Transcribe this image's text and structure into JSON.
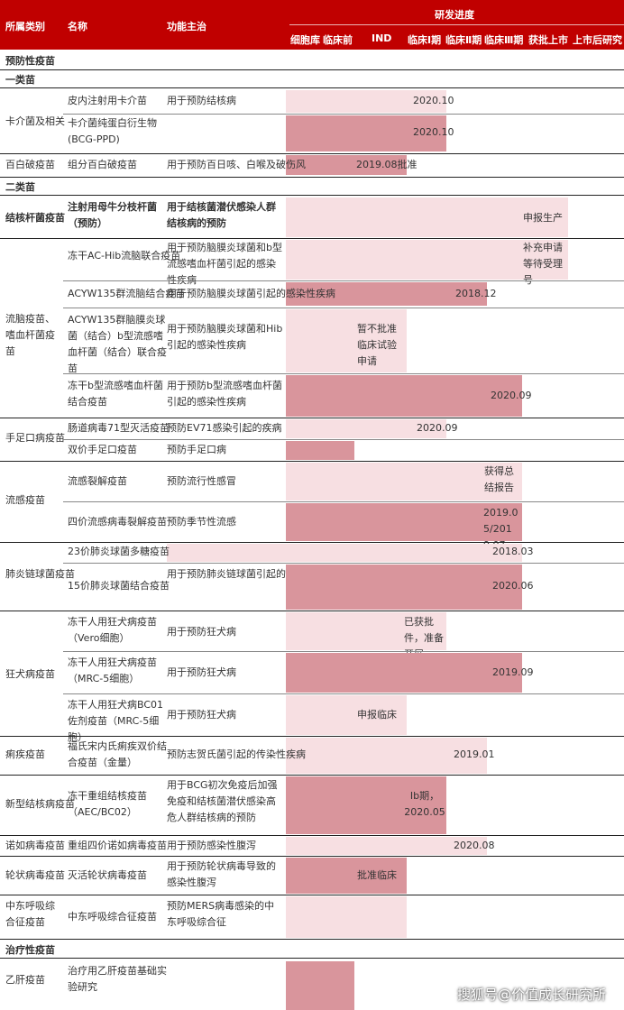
{
  "header": {
    "category": "所属类别",
    "name": "名称",
    "indication": "功能主治",
    "progress": "研发进度",
    "stages": [
      "细胞库",
      "临床前",
      "IND",
      "临床Ⅰ期",
      "临床Ⅱ期",
      "临床Ⅲ期",
      "获批上市",
      "上市后研究"
    ]
  },
  "sections": {
    "preventive": "预防性疫苗",
    "class1": "一类苗",
    "class2": "二类苗",
    "therapeutic": "治疗性疫苗"
  },
  "rows": [
    {
      "cat": "",
      "name": "皮内注射用卡介苗",
      "ind": "用于预防结核病",
      "val": "2020.10"
    },
    {
      "cat": "卡介菌及相关",
      "name": "卡介菌纯蛋白衍生物 (BCG-PPD)",
      "ind": "",
      "val": "2020.10"
    },
    {
      "cat": "百白破疫苗",
      "name": "组分百白破疫苗",
      "ind": "用于预防百日咳、白喉及破伤风",
      "val": "2019.08批准"
    },
    {
      "cat": "结核杆菌疫苗",
      "name": "注射用母牛分枝杆菌（预防）",
      "ind": "用于结核菌潜伏感染人群结核病的预防",
      "val": "申报生产"
    },
    {
      "cat": "",
      "name": "冻干AC-Hib流脑联合疫苗",
      "ind": "用于预防脑膜炎球菌和b型流感嗜血杆菌引起的感染性疾病",
      "val": "补充申请等待受理号"
    },
    {
      "cat": "流脑疫苗、嗜血杆菌疫苗",
      "name": "ACYW135群流脑结合疫苗",
      "ind": "用于预防脑膜炎球菌引起的感染性疾病",
      "val": "2018.12"
    },
    {
      "cat": "",
      "name": "ACYW135群脑膜炎球菌（结合）b型流感嗜血杆菌（结合）联合疫苗",
      "ind": "用于预防脑膜炎球菌和Hib引起的感染性疾病",
      "val": "暂不批准临床试验申请"
    },
    {
      "cat": "",
      "name": "冻干b型流感嗜血杆菌结合疫苗",
      "ind": "用于预防b型流感嗜血杆菌引起的感染性疾病",
      "val": "2020.09"
    },
    {
      "cat": "手足口病疫苗",
      "name": "肠道病毒71型灭活疫苗",
      "ind": "预防EV71感染引起的疾病",
      "val": "2020.09"
    },
    {
      "cat": "",
      "name": "双价手足口疫苗",
      "ind": "预防手足口病",
      "val": ""
    },
    {
      "cat": "流感疫苗",
      "name": "流感裂解疫苗",
      "ind": "预防流行性感冒",
      "val": "获得总结报告"
    },
    {
      "cat": "",
      "name": "四价流感病毒裂解疫苗",
      "ind": "预防季节性流感",
      "val": "2019.05/2019.07"
    },
    {
      "cat": "肺炎链球菌疫苗",
      "name": "23价肺炎球菌多糖疫苗",
      "ind": "用于预防肺炎链球菌引起的感染性疾病",
      "val": "2018.03"
    },
    {
      "cat": "",
      "name": "15价肺炎球菌结合疫苗",
      "ind": "",
      "val": "2020.06"
    },
    {
      "cat": "狂犬病疫苗",
      "name": "冻干人用狂犬病疫苗（Vero细胞）",
      "ind": "用于预防狂犬病",
      "val": "已获批件，准备开展"
    },
    {
      "cat": "",
      "name": "冻干人用狂犬病疫苗（MRC-5细胞）",
      "ind": "用于预防狂犬病",
      "val": "2019.09"
    },
    {
      "cat": "",
      "name": "冻干人用狂犬病BC01佐剂疫苗（MRC-5细胞）",
      "ind": "用于预防狂犬病",
      "val": "申报临床"
    },
    {
      "cat": "痢疾疫苗",
      "name": "福氏宋内氏痢疾双价结合疫苗（金量）",
      "ind": "预防志贺氏菌引起的传染性疾病",
      "val": "2019.01"
    },
    {
      "cat": "新型结核病疫苗",
      "name": "冻干重组结核疫苗（AEC/BC02）",
      "ind": "用于BCG初次免疫后加强免疫和结核菌潜伏感染高危人群结核病的预防",
      "val": "Ⅰb期，2020.05"
    },
    {
      "cat": "诺如病毒疫苗",
      "name": "重组四价诺如病毒疫苗",
      "ind": "用于预防感染性腹泻",
      "val": "2020.08"
    },
    {
      "cat": "轮状病毒疫苗",
      "name": "灭活轮状病毒疫苗",
      "ind": "用于预防轮状病毒导致的感染性腹泻",
      "val": "批准临床"
    },
    {
      "cat": "中东呼吸综合征疫苗",
      "name": "中东呼吸综合征疫苗",
      "ind": "预防MERS病毒感染的中东呼吸综合征",
      "val": ""
    },
    {
      "cat": "乙肝疫苗",
      "name": "治疗用乙肝疫苗基础实验研究",
      "ind": "",
      "val": ""
    }
  ],
  "watermark": "搜狐号@价值成长研究所"
}
